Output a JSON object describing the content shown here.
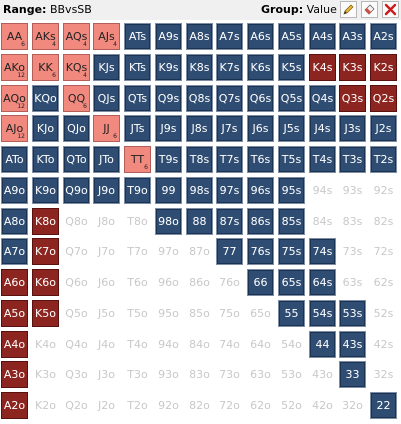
{
  "header": {
    "range_label": "Range:",
    "range_value": "BBvsSB",
    "group_label": "Group:",
    "group_value": "Value"
  },
  "toolbar": {
    "edit_icon": "pencil-icon",
    "clear_icon": "eraser-icon",
    "close_icon": "red-x-icon"
  },
  "colors": {
    "blue": "#2f4d72",
    "pink": "#f1897e",
    "dark_red": "#8c2520",
    "empty_text": "#c9c9c9"
  },
  "grid": {
    "rows": [
      [
        "AA:p:6",
        "AKs:p:4",
        "AQs:p:4",
        "AJs:p:4",
        "ATs:b",
        "A9s:b",
        "A8s:b",
        "A7s:b",
        "A6s:b",
        "A5s:b",
        "A4s:b",
        "A3s:b",
        "A2s:b"
      ],
      [
        "AKo:p:12",
        "KK:p:6",
        "KQs:p:4",
        "KJs:b",
        "KTs:b",
        "K9s:b",
        "K8s:b",
        "K7s:b",
        "K6s:b",
        "K5s:b",
        "K4s:d",
        "K3s:d",
        "K2s:d"
      ],
      [
        "AQo:p:12",
        "KQo:b",
        "QQ:p:6",
        "QJs:b",
        "QTs:b",
        "Q9s:b",
        "Q8s:b",
        "Q7s:b",
        "Q6s:b",
        "Q5s:b",
        "Q4s:b",
        "Q3s:d",
        "Q2s:d"
      ],
      [
        "AJo:p:12",
        "KJo:b",
        "QJo:b",
        "JJ:p:6",
        "JTs:b",
        "J9s:b",
        "J8s:b",
        "J7s:b",
        "J6s:b",
        "J5s:b",
        "J4s:b",
        "J3s:b",
        "J2s:b"
      ],
      [
        "ATo:b",
        "KTo:b",
        "QTo:b",
        "JTo:b",
        "TT:p:6",
        "T9s:b",
        "T8s:b",
        "T7s:b",
        "T6s:b",
        "T5s:b",
        "T4s:b",
        "T3s:b",
        "T2s:b"
      ],
      [
        "A9o:b",
        "K9o:b",
        "Q9o:b",
        "J9o:b",
        "T9o:b",
        "99:b",
        "98s:b",
        "97s:b",
        "96s:b",
        "95s:b",
        "94s:e",
        "93s:e",
        "92s:e"
      ],
      [
        "A8o:b",
        "K8o:d",
        "Q8o:e",
        "J8o:e",
        "T8o:e",
        "98o:b",
        "88:b",
        "87s:b",
        "86s:b",
        "85s:b",
        "84s:e",
        "83s:e",
        "82s:e"
      ],
      [
        "A7o:b",
        "K7o:d",
        "Q7o:e",
        "J7o:e",
        "T7o:e",
        "97o:e",
        "87o:e",
        "77:b",
        "76s:b",
        "75s:b",
        "74s:b",
        "73s:e",
        "72s:e"
      ],
      [
        "A6o:d",
        "K6o:d",
        "Q6o:e",
        "J6o:e",
        "T6o:e",
        "96o:e",
        "86o:e",
        "76o:e",
        "66:b",
        "65s:b",
        "64s:b",
        "63s:e",
        "62s:e"
      ],
      [
        "A5o:d",
        "K5o:d",
        "Q5o:e",
        "J5o:e",
        "T5o:e",
        "95o:e",
        "85o:e",
        "75o:e",
        "65o:e",
        "55:b",
        "54s:b",
        "53s:b",
        "52s:e"
      ],
      [
        "A4o:d",
        "K4o:e",
        "Q4o:e",
        "J4o:e",
        "T4o:e",
        "94o:e",
        "84o:e",
        "74o:e",
        "64o:e",
        "54o:e",
        "44:b",
        "43s:b",
        "42s:e"
      ],
      [
        "A3o:d",
        "K3o:e",
        "Q3o:e",
        "J3o:e",
        "T3o:e",
        "93o:e",
        "83o:e",
        "73o:e",
        "63o:e",
        "53o:e",
        "43o:e",
        "33:b",
        "32s:e"
      ],
      [
        "A2o:d",
        "K2o:e",
        "Q2o:e",
        "J2o:e",
        "T2o:e",
        "92o:e",
        "82o:e",
        "72o:e",
        "62o:e",
        "52o:e",
        "42o:e",
        "32o:e",
        "22:b"
      ]
    ]
  }
}
